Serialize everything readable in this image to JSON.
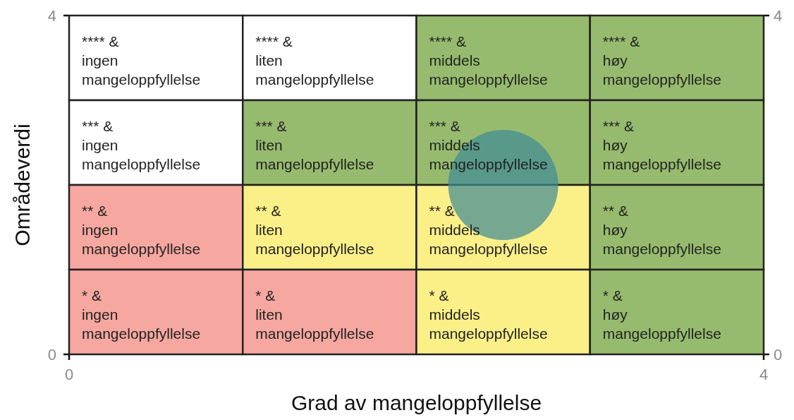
{
  "chart_data": {
    "type": "bubble",
    "xlabel": "Grad av mangeloppfyllelse",
    "ylabel": "Områdeverdi",
    "xlim": [
      0,
      4
    ],
    "xticks": [
      0,
      4
    ],
    "ylim": [
      0,
      4
    ],
    "yticks": [
      0,
      4
    ],
    "y2lim": [
      0,
      4
    ],
    "y2ticks": [
      0,
      4
    ],
    "annotations": [
      "**** &\ningen\nmangeloppfyllelse",
      "**** &\nliten\nmangeloppfyllelse",
      "**** &\nmiddels\nmangeloppfyllelse",
      "**** &\nhøy\nmangeloppfyllelse",
      "*** &\ningen\nmangeloppfyllelse",
      "*** &\nliten\nmangeloppfyllelse",
      "*** &\nmiddels\nmangeloppfyllelse",
      "*** &\nhøy\nmangeloppfyllelse",
      "** &\ningen\nmangeloppfyllelse",
      "** &\nliten\nmangeloppfyllelse",
      "** &\nmiddels\nmangeloppfyllelse",
      "** &\nhøy\nmangeloppfyllelse",
      "* &\ningen\nmangeloppfyllelse",
      "* &\nliten\nmangeloppfyllelse",
      "* &\nmiddels\nmangeloppfyllelse",
      "* &\nhøy\nmangeloppfyllelse"
    ],
    "series": [
      {
        "x": [
          2.5
        ],
        "values": [
          2.0
        ],
        "sizes": [
          1
        ],
        "color": "#3d8a96"
      }
    ]
  }
}
